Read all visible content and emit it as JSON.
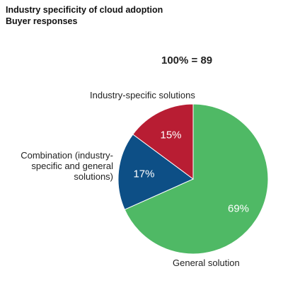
{
  "header": {
    "title": "Industry specificity of cloud adoption",
    "subtitle": "Buyer responses"
  },
  "total_label": "100% = 89",
  "chart_data": {
    "type": "pie",
    "title": "Industry specificity of cloud adoption",
    "subtitle": "Buyer responses",
    "total": "100% = 89",
    "slices": [
      {
        "label": "General solution",
        "value": 69,
        "value_label": "69%",
        "color": "#4fb965"
      },
      {
        "label": "Combination (industry-specific and general solutions)",
        "value": 17,
        "value_label": "17%",
        "color": "#0d4f86"
      },
      {
        "label": "Industry-specific  solutions",
        "value": 15,
        "value_label": "15%",
        "color": "#b81d33"
      }
    ]
  }
}
